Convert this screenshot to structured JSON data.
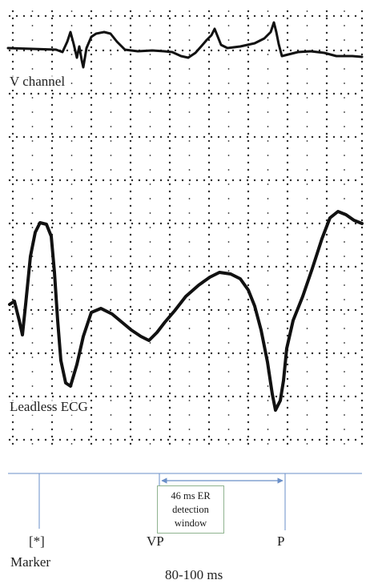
{
  "channels": {
    "v_channel": "V channel",
    "leadless_ecg": "Leadless ECG"
  },
  "markers": {
    "asterisk": "[*]",
    "marker_label": "Marker",
    "vp": "VP",
    "p": "P"
  },
  "detection_window": {
    "line1": "46 ms ER",
    "line2": "detection",
    "line3": "window"
  },
  "duration_label": "80-100 ms",
  "colors": {
    "trace": "#111111",
    "grid_dots": "#2a2a2a",
    "timeline": "#6a8fc8",
    "window_border": "#8fb38f"
  }
}
